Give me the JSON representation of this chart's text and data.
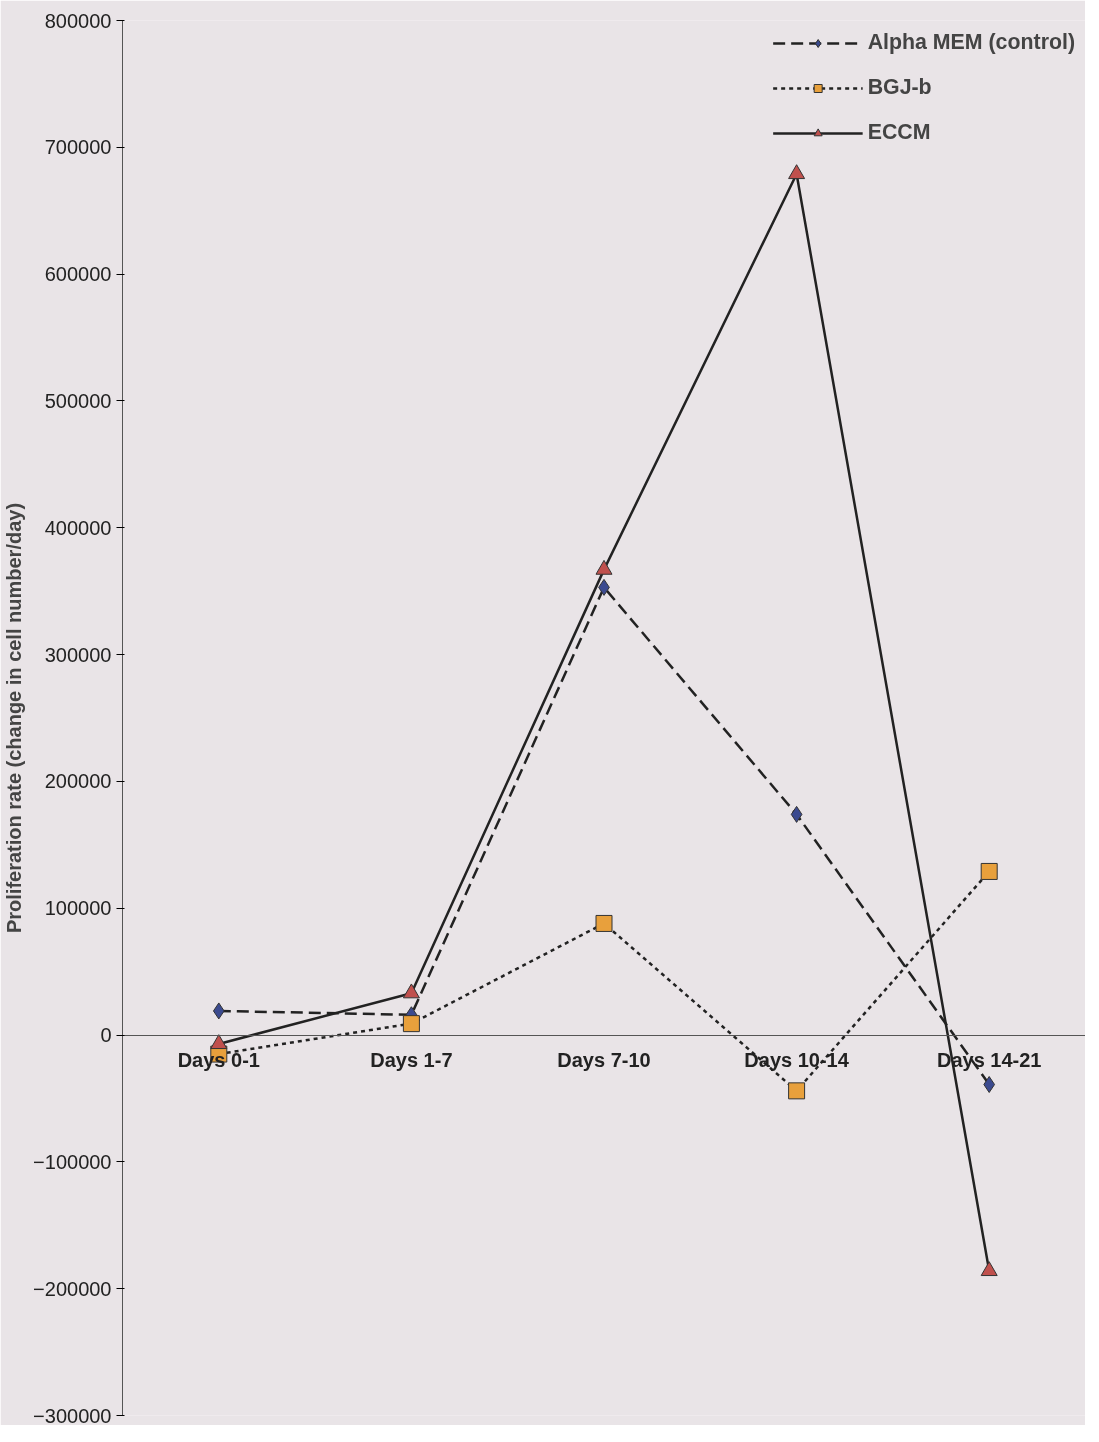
{
  "chart_data": {
    "type": "line",
    "ylabel": "Proliferation rate (change in cell number/day)",
    "categories": [
      "Days 0-1",
      "Days 1-7",
      "Days 7-10",
      "Days 10-14",
      "Days 14-21"
    ],
    "series": [
      {
        "name": "Alpha MEM (control)",
        "color": "#3b4a8f",
        "marker": "diamond",
        "line_style": "dashed",
        "values": [
          19000,
          16000,
          353000,
          174000,
          -39000
        ]
      },
      {
        "name": "BGJ-b",
        "color": "#e8a03c",
        "marker": "square",
        "line_style": "dotted",
        "values": [
          -15000,
          9000,
          88000,
          -44000,
          129000
        ]
      },
      {
        "name": "ECCM",
        "color": "#c0504d",
        "marker": "triangle",
        "line_style": "solid",
        "values": [
          -7000,
          33000,
          367000,
          679000,
          -186000
        ]
      }
    ],
    "ylim": [
      -300000,
      800000
    ],
    "yticks": [
      -300000,
      -200000,
      -100000,
      0,
      100000,
      200000,
      300000,
      400000,
      500000,
      600000,
      700000,
      800000
    ],
    "legend": "top right"
  }
}
